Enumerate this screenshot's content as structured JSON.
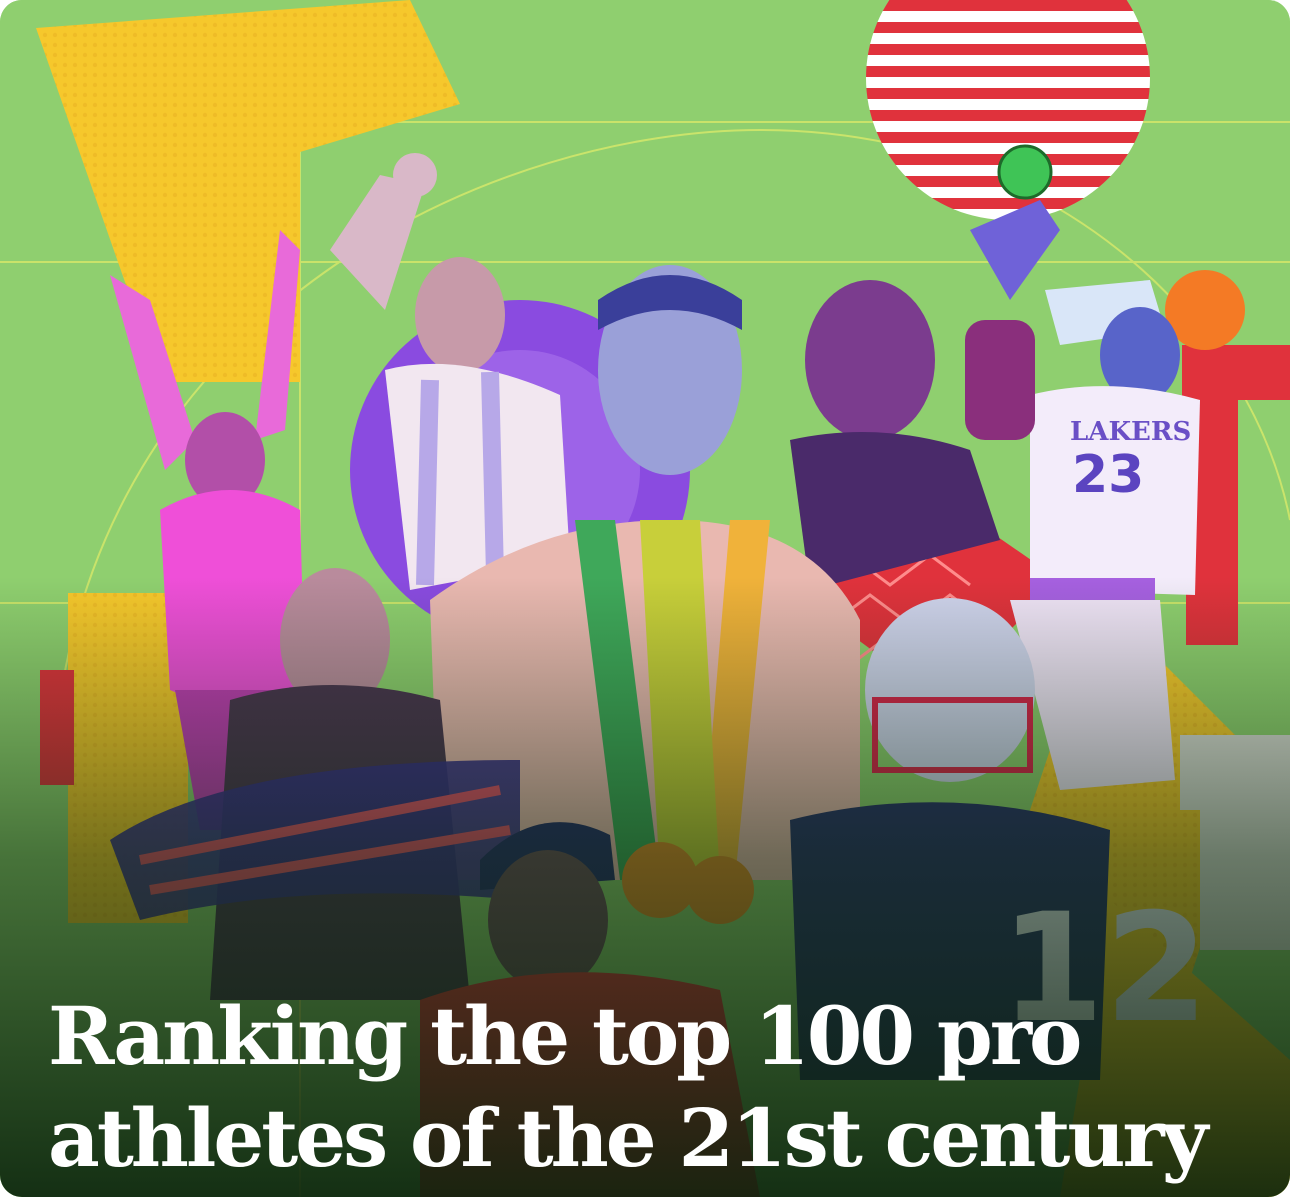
{
  "headline": {
    "line1": "Ranking the top 100 pro",
    "line2": "athletes of the 21st century"
  },
  "athletes_visual": {
    "jersey_numbers": [
      "23",
      "12"
    ],
    "jersey_text": [
      "LAKERS"
    ]
  },
  "colors": {
    "background": "#8fcf6f",
    "accent_yellow": "#f6c82c",
    "accent_red": "#e0323c",
    "accent_purple": "#7a3fd6",
    "accent_pink": "#e24fd2",
    "headline_text": "#ffffff"
  }
}
